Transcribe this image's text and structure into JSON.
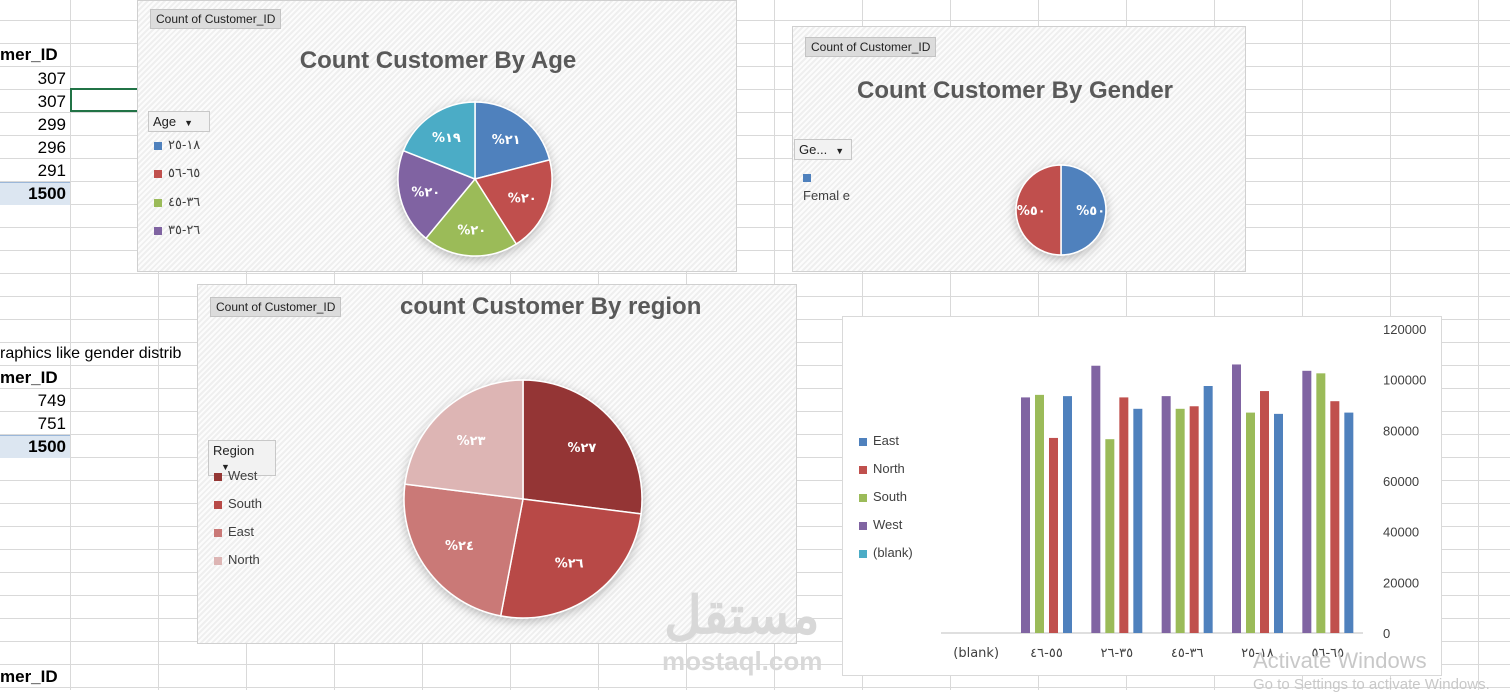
{
  "sheet": {
    "header1": "mer_ID",
    "values1": [
      "307",
      "307",
      "299",
      "296",
      "291"
    ],
    "total1": "1500",
    "note": "raphics like gender distrib",
    "header2": "mer_ID",
    "values2": [
      "749",
      "751"
    ],
    "total2": "1500",
    "header3": "mer_ID"
  },
  "charts": {
    "age": {
      "field_button": "Count of Customer_ID",
      "title": "Count Customer By Age",
      "legend_button": "Age",
      "legend": [
        {
          "label": "١٨-٢٥",
          "color": "#4f81bd"
        },
        {
          "label": "٦٥-٥٦",
          "color": "#c0504d"
        },
        {
          "label": "٣٦-٤٥",
          "color": "#9bbb59"
        },
        {
          "label": "٢٦-٣٥",
          "color": "#8064a2"
        }
      ],
      "slices": [
        {
          "value": 21,
          "label": "%٢١",
          "color": "#4f81bd"
        },
        {
          "value": 20,
          "label": "%٢٠",
          "color": "#c0504d"
        },
        {
          "value": 20,
          "label": "%٢٠",
          "color": "#9bbb59"
        },
        {
          "value": 20,
          "label": "%٢٠",
          "color": "#8064a2"
        },
        {
          "value": 19,
          "label": "%١٩",
          "color": "#4bacc6"
        }
      ]
    },
    "gender": {
      "field_button": "Count of Customer_ID",
      "title": "Count Customer By Gender",
      "legend_button": "Ge...",
      "legend_item": "Femal e",
      "legend_color": "#4f81bd",
      "slices": [
        {
          "value": 50,
          "label": "%٥٠",
          "color": "#4f81bd"
        },
        {
          "value": 50,
          "label": "%٥٠",
          "color": "#c0504d"
        }
      ]
    },
    "region": {
      "field_button": "Count of Customer_ID",
      "title": "count Customer By region",
      "legend_button": "Region",
      "legend": [
        {
          "label": "West",
          "color": "#943634"
        },
        {
          "label": "South",
          "color": "#b84a47"
        },
        {
          "label": "East",
          "color": "#ca7977"
        },
        {
          "label": "North",
          "color": "#ddb5b4"
        }
      ],
      "slices": [
        {
          "value": 27,
          "label": "%٢٧",
          "color": "#943634"
        },
        {
          "value": 26,
          "label": "%٢٦",
          "color": "#b84a47"
        },
        {
          "value": 24,
          "label": "%٢٤",
          "color": "#ca7977"
        },
        {
          "value": 23,
          "label": "%٢٣",
          "color": "#ddb5b4"
        }
      ]
    }
  },
  "chart_data": {
    "type": "bar",
    "categories": [
      "(blank)",
      "٥٥-٤٦",
      "٣٥-٢٦",
      "٣٦-٤٥",
      "١٨-٢٥",
      "٦٥-٥٦"
    ],
    "ylim": [
      0,
      120000
    ],
    "yticks": [
      "0",
      "20000",
      "40000",
      "60000",
      "80000",
      "100000",
      "120000"
    ],
    "legend": [
      "East",
      "North",
      "South",
      "West",
      "(blank)"
    ],
    "series": [
      {
        "name": "West",
        "color": "#8064a2",
        "values": [
          null,
          93000,
          105500,
          93500,
          106000,
          103500
        ]
      },
      {
        "name": "South",
        "color": "#9bbb59",
        "values": [
          null,
          94000,
          76500,
          88500,
          87000,
          102500
        ]
      },
      {
        "name": "North",
        "color": "#c0504d",
        "values": [
          null,
          77000,
          93000,
          89500,
          95500,
          91500
        ]
      },
      {
        "name": "East",
        "color": "#4f81bd",
        "values": [
          null,
          93500,
          88500,
          97500,
          86500,
          87000
        ]
      }
    ],
    "legend_colors": [
      "#4f81bd",
      "#c0504d",
      "#9bbb59",
      "#8064a2",
      "#4bacc6"
    ]
  },
  "watermark": {
    "arabic": "مستقل",
    "latin": "mostaql.com"
  },
  "activate": {
    "line1": "Activate Windows",
    "line2": "Go to Settings to activate Windows."
  }
}
